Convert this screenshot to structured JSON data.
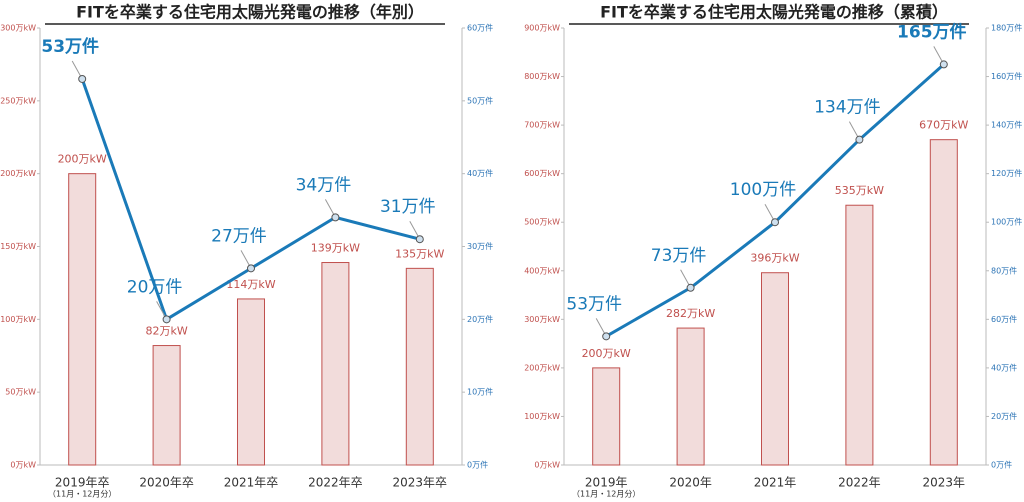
{
  "chart_data": [
    {
      "type": "bar-line",
      "title": "FITを卒業する住宅用太陽光発電の推移（年別）",
      "categories": [
        "2019年卒",
        "2020年卒",
        "2021年卒",
        "2022年卒",
        "2023年卒"
      ],
      "category_notes": [
        "（11月・12月分）",
        null,
        null,
        null,
        null
      ],
      "series": [
        {
          "type": "bar",
          "color": "#f2dcdb",
          "edge": "#c0504d",
          "values": [
            200,
            82,
            114,
            139,
            135
          ],
          "value_labels": [
            "200万kW",
            "82万kW",
            "114万kW",
            "139万kW",
            "135万kW"
          ]
        },
        {
          "type": "line",
          "axis": "y2",
          "color": "#1a7ab8",
          "values": [
            53,
            20,
            27,
            34,
            31
          ],
          "value_labels": [
            "53万件",
            "20万件",
            "27万件",
            "34万件",
            "31万件"
          ]
        }
      ],
      "ylim": [
        0,
        300
      ],
      "yticks": [
        {
          "value": 0,
          "label": "0万kW"
        },
        {
          "value": 50,
          "label": "50万kW"
        },
        {
          "value": 100,
          "label": "100万kW"
        },
        {
          "value": 150,
          "label": "150万kW"
        },
        {
          "value": 200,
          "label": "200万kW"
        },
        {
          "value": 250,
          "label": "250万kW"
        },
        {
          "value": 300,
          "label": "300万kW"
        }
      ],
      "y2lim": [
        0,
        60
      ],
      "y2ticks": [
        {
          "value": 0,
          "label": "0万件"
        },
        {
          "value": 10,
          "label": "10万件"
        },
        {
          "value": 20,
          "label": "20万件"
        },
        {
          "value": 30,
          "label": "30万件"
        },
        {
          "value": 40,
          "label": "40万件"
        },
        {
          "value": 50,
          "label": "50万件"
        },
        {
          "value": 60,
          "label": "60万件"
        }
      ]
    },
    {
      "type": "bar-line",
      "title": "FITを卒業する住宅用太陽光発電の推移（累積）",
      "categories": [
        "2019年",
        "2020年",
        "2021年",
        "2022年",
        "2023年"
      ],
      "category_notes": [
        "（11月・12月分）",
        null,
        null,
        null,
        null
      ],
      "series": [
        {
          "type": "bar",
          "color": "#f2dcdb",
          "edge": "#c0504d",
          "values": [
            200,
            282,
            396,
            535,
            670
          ],
          "value_labels": [
            "200万kW",
            "282万kW",
            "396万kW",
            "535万kW",
            "670万kW"
          ]
        },
        {
          "type": "line",
          "axis": "y2",
          "color": "#1a7ab8",
          "values": [
            53,
            73,
            100,
            134,
            165
          ],
          "value_labels": [
            "53万件",
            "73万件",
            "100万件",
            "134万件",
            "165万件"
          ]
        }
      ],
      "ylim": [
        0,
        900
      ],
      "yticks": [
        {
          "value": 0,
          "label": "0万kW"
        },
        {
          "value": 100,
          "label": "100万kW"
        },
        {
          "value": 200,
          "label": "200万kW"
        },
        {
          "value": 300,
          "label": "300万kW"
        },
        {
          "value": 400,
          "label": "400万kW"
        },
        {
          "value": 500,
          "label": "500万kW"
        },
        {
          "value": 600,
          "label": "600万kW"
        },
        {
          "value": 700,
          "label": "700万kW"
        },
        {
          "value": 800,
          "label": "800万kW"
        },
        {
          "value": 900,
          "label": "900万kW"
        }
      ],
      "y2lim": [
        0,
        180
      ],
      "y2ticks": [
        {
          "value": 0,
          "label": "0万件"
        },
        {
          "value": 20,
          "label": "20万件"
        },
        {
          "value": 40,
          "label": "40万件"
        },
        {
          "value": 60,
          "label": "60万件"
        },
        {
          "value": 80,
          "label": "80万件"
        },
        {
          "value": 100,
          "label": "100万件"
        },
        {
          "value": 120,
          "label": "120万件"
        },
        {
          "value": 140,
          "label": "140万件"
        },
        {
          "value": 160,
          "label": "160万件"
        },
        {
          "value": 180,
          "label": "180万件"
        }
      ]
    }
  ]
}
